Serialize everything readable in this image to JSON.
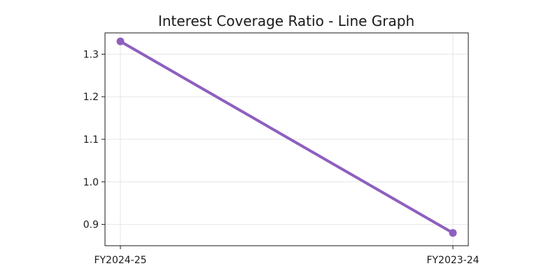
{
  "chart_data": {
    "type": "line",
    "title": "Interest Coverage Ratio - Line Graph",
    "xlabel": "",
    "ylabel": "",
    "categories": [
      "FY2024-25",
      "FY2023-24"
    ],
    "series": [
      {
        "values": [
          1.33,
          0.88
        ],
        "color": "#8e5fbf"
      }
    ],
    "ylim": [
      0.85,
      1.35
    ],
    "yticks": [
      "0.9",
      "1.0",
      "1.1",
      "1.2",
      "1.3"
    ],
    "grid": true,
    "legend": "none"
  }
}
